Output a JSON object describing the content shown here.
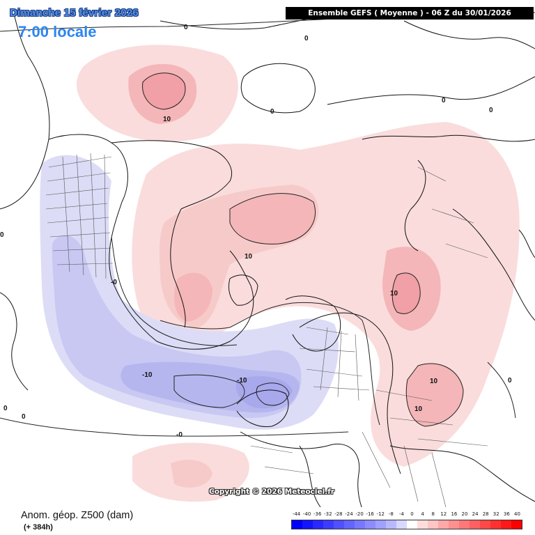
{
  "header": {
    "date_title": "Dimanche 15 février 2026",
    "time_title": "7:00 locale",
    "run_info": "Ensemble GEFS  ( Moyenne )  -  06 Z du 30/01/2026"
  },
  "map": {
    "copyright": "Copyright © 2026 Meteociel.fr",
    "contour_labels": [
      {
        "id": "l1",
        "text": "0"
      },
      {
        "id": "l2",
        "text": "0"
      },
      {
        "id": "l3",
        "text": "0"
      },
      {
        "id": "l4",
        "text": "0"
      },
      {
        "id": "l5",
        "text": "-0"
      },
      {
        "id": "l6",
        "text": "0"
      },
      {
        "id": "l7",
        "text": "0"
      },
      {
        "id": "l8",
        "text": "10"
      },
      {
        "id": "l9",
        "text": "10"
      },
      {
        "id": "l10",
        "text": "10"
      },
      {
        "id": "l11",
        "text": "10"
      },
      {
        "id": "l12",
        "text": "10"
      },
      {
        "id": "l13",
        "text": "-10"
      },
      {
        "id": "l14",
        "text": "-10"
      },
      {
        "id": "l15",
        "text": "0"
      },
      {
        "id": "l16",
        "text": "0"
      },
      {
        "id": "l17",
        "text": "-0"
      },
      {
        "id": "l18",
        "text": "0"
      }
    ]
  },
  "footer": {
    "variable_title": "Anom. géop. Z500 (dam)",
    "lead_time": "(+ 384h)"
  },
  "legend": {
    "ticks": [
      "-44",
      "-40",
      "-36",
      "-32",
      "-28",
      "-24",
      "-20",
      "-16",
      "-12",
      "-8",
      "-4",
      "0",
      "4",
      "8",
      "12",
      "16",
      "20",
      "24",
      "28",
      "32",
      "36",
      "40"
    ],
    "colors": [
      "#0000ff",
      "#1414ff",
      "#2828ff",
      "#3c3cff",
      "#5050ff",
      "#6464ff",
      "#7878ff",
      "#8c8cff",
      "#a0a0ff",
      "#b8b8ff",
      "#d8d8ff",
      "#ffffff",
      "#ffdcdc",
      "#ffc4c4",
      "#ffa8a8",
      "#ff9090",
      "#ff7878",
      "#ff6060",
      "#ff4848",
      "#ff3030",
      "#ff1818",
      "#ff0000"
    ]
  },
  "colors": {
    "positive_light": "#fadcdc",
    "positive_mid": "#f4b6b8",
    "negative_light": "#dcdcf7",
    "negative_mid": "#b6b6ef",
    "date_title": "#5a8fe0",
    "time_title": "#2b86f0"
  }
}
